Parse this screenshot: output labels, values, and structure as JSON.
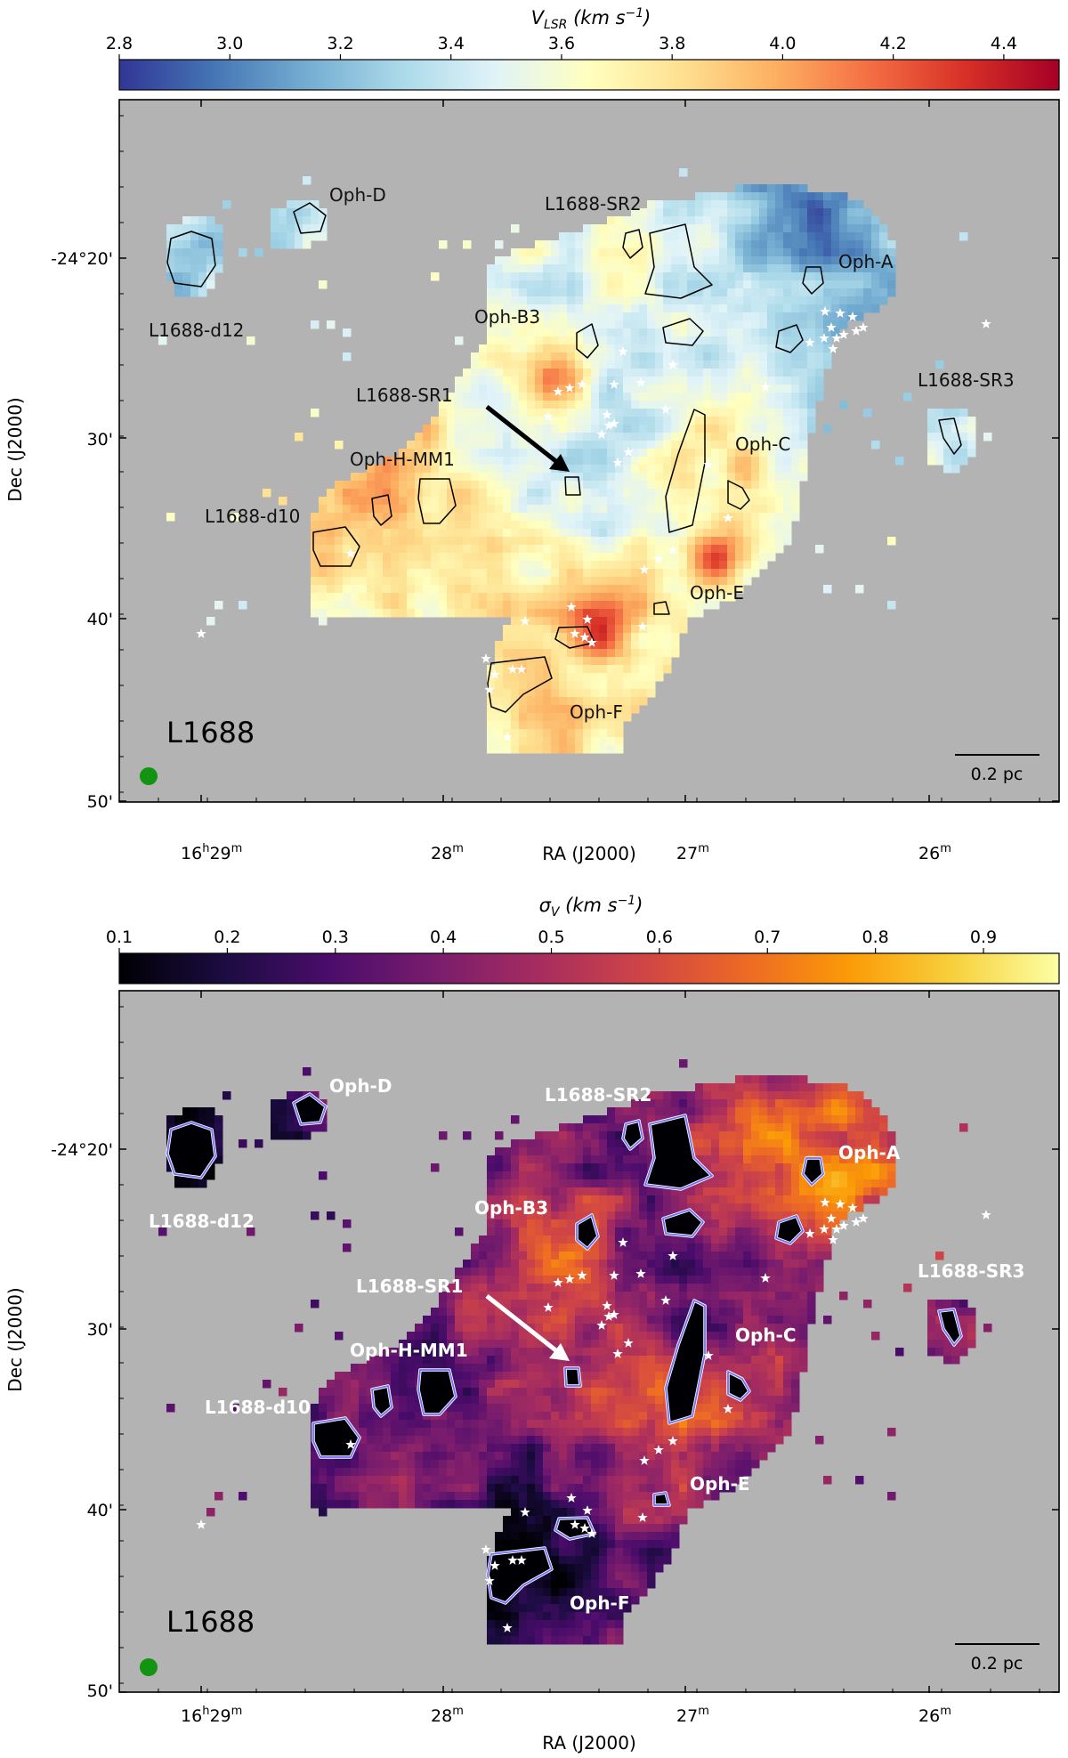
{
  "chart_data": [
    {
      "type": "heatmap",
      "title": "V_LSR (km s^-1)",
      "colorbar": {
        "label_main": "V",
        "label_sub": "LSR",
        "label_unit": " (km s",
        "label_exp": "−1",
        "label_close": ")",
        "ticks": [
          "2.8",
          "3.0",
          "3.2",
          "3.4",
          "3.6",
          "3.8",
          "4.0",
          "4.2",
          "4.4"
        ],
        "range": [
          2.8,
          4.5
        ],
        "colormap": "RdYlBu_r",
        "stops": [
          "#313695",
          "#4575b4",
          "#74add1",
          "#abd9e9",
          "#e0f3f8",
          "#ffffbf",
          "#fee090",
          "#fdae61",
          "#f46d43",
          "#d73027",
          "#a50026"
        ]
      },
      "xlabel": "RA (J2000)",
      "ylabel": "Dec (J2000)",
      "x_ticks": [
        "16h29m",
        "28m",
        "27m",
        "26m"
      ],
      "y_ticks": [
        "-24°20'",
        "30'",
        "40'",
        "50'"
      ],
      "field_label": "L1688",
      "scale_bar": "0.2 pc",
      "regions": [
        "Oph-D",
        "L1688-SR2",
        "Oph-A",
        "L1688-d12",
        "Oph-B3",
        "L1688-SR3",
        "L1688-SR1",
        "Oph-C",
        "Oph-H-MM1",
        "L1688-d10",
        "Oph-E",
        "Oph-F"
      ],
      "background_color": "#b3b3b3",
      "contour_color": "#000000",
      "arrow_color": "#000000"
    },
    {
      "type": "heatmap",
      "title": "σ_V (km s^-1)",
      "colorbar": {
        "label_main": "σ",
        "label_sub": "V",
        "label_unit": " (km s",
        "label_exp": "−1",
        "label_close": ")",
        "ticks": [
          "0.1",
          "0.2",
          "0.3",
          "0.4",
          "0.5",
          "0.6",
          "0.7",
          "0.8",
          "0.9"
        ],
        "range": [
          0.1,
          0.97
        ],
        "colormap": "inferno",
        "stops": [
          "#000004",
          "#1b0c41",
          "#4a0c6b",
          "#781c6d",
          "#a52c60",
          "#cf4446",
          "#ed6925",
          "#fb9b06",
          "#f7d13d",
          "#fcffa4"
        ]
      },
      "xlabel": "RA (J2000)",
      "ylabel": "Dec (J2000)",
      "x_ticks": [
        "16h29m",
        "28m",
        "27m",
        "26m"
      ],
      "y_ticks": [
        "-24°20'",
        "30'",
        "40'",
        "50'"
      ],
      "field_label": "L1688",
      "scale_bar": "0.2 pc",
      "regions": [
        "Oph-D",
        "L1688-SR2",
        "Oph-A",
        "L1688-d12",
        "Oph-B3",
        "L1688-SR3",
        "L1688-SR1",
        "Oph-C",
        "Oph-H-MM1",
        "L1688-d10",
        "Oph-E",
        "Oph-F"
      ],
      "background_color": "#b3b3b3",
      "contour_color": "#6f6ff5",
      "arrow_color": "#ffffff"
    }
  ]
}
